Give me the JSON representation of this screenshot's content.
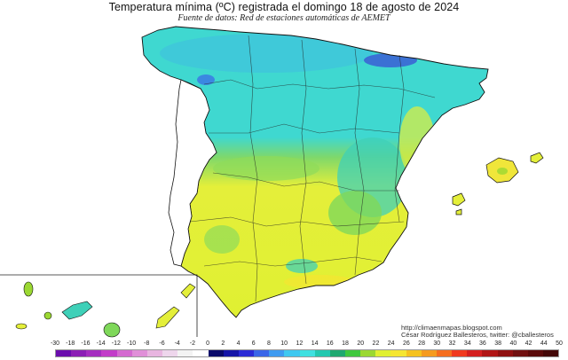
{
  "title": "Temperatura mínima (ºC) registrada el domingo 18 de agosto de 2024",
  "subtitle": "Fuente de datos: Red de estaciones automáticas de AEMET",
  "credits": {
    "url": "http://climaenmapas.blogspot.com",
    "author": "César Rodríguez Ballesteros, twitter: @cballesteros"
  },
  "legend": {
    "labels": [
      "-30",
      "-18",
      "-16",
      "-14",
      "-12",
      "-10",
      "-8",
      "-6",
      "-4",
      "-2",
      "0",
      "2",
      "4",
      "6",
      "8",
      "10",
      "12",
      "14",
      "16",
      "18",
      "20",
      "22",
      "24",
      "26",
      "28",
      "30",
      "32",
      "34",
      "36",
      "38",
      "40",
      "42",
      "44",
      "50"
    ],
    "colors": [
      "#6a0dad",
      "#8b1fb5",
      "#a52ec0",
      "#c23dc9",
      "#d46ad0",
      "#e08fd8",
      "#e8b5e0",
      "#eed6ec",
      "#f3f3f3",
      "#ffffff",
      "#0a0a6a",
      "#1515a8",
      "#2b2bd6",
      "#3a66e8",
      "#3f9bf0",
      "#3fc8f0",
      "#3fe0e0",
      "#22c8b0",
      "#1fa870",
      "#3fc83f",
      "#9bd832",
      "#e0f032",
      "#f5e632",
      "#f5c21f",
      "#f59b1f",
      "#f56e1f",
      "#f03a1f",
      "#d41f1f",
      "#b01515",
      "#8f1010",
      "#701010",
      "#5a0a0a",
      "#430707"
    ],
    "unit": "ºC"
  },
  "map": {
    "region": "España peninsular, Baleares y Canarias",
    "north_color": "#3fd8d0",
    "south_color": "#e4ef3a",
    "coast_cold_color": "#3a46d6"
  }
}
